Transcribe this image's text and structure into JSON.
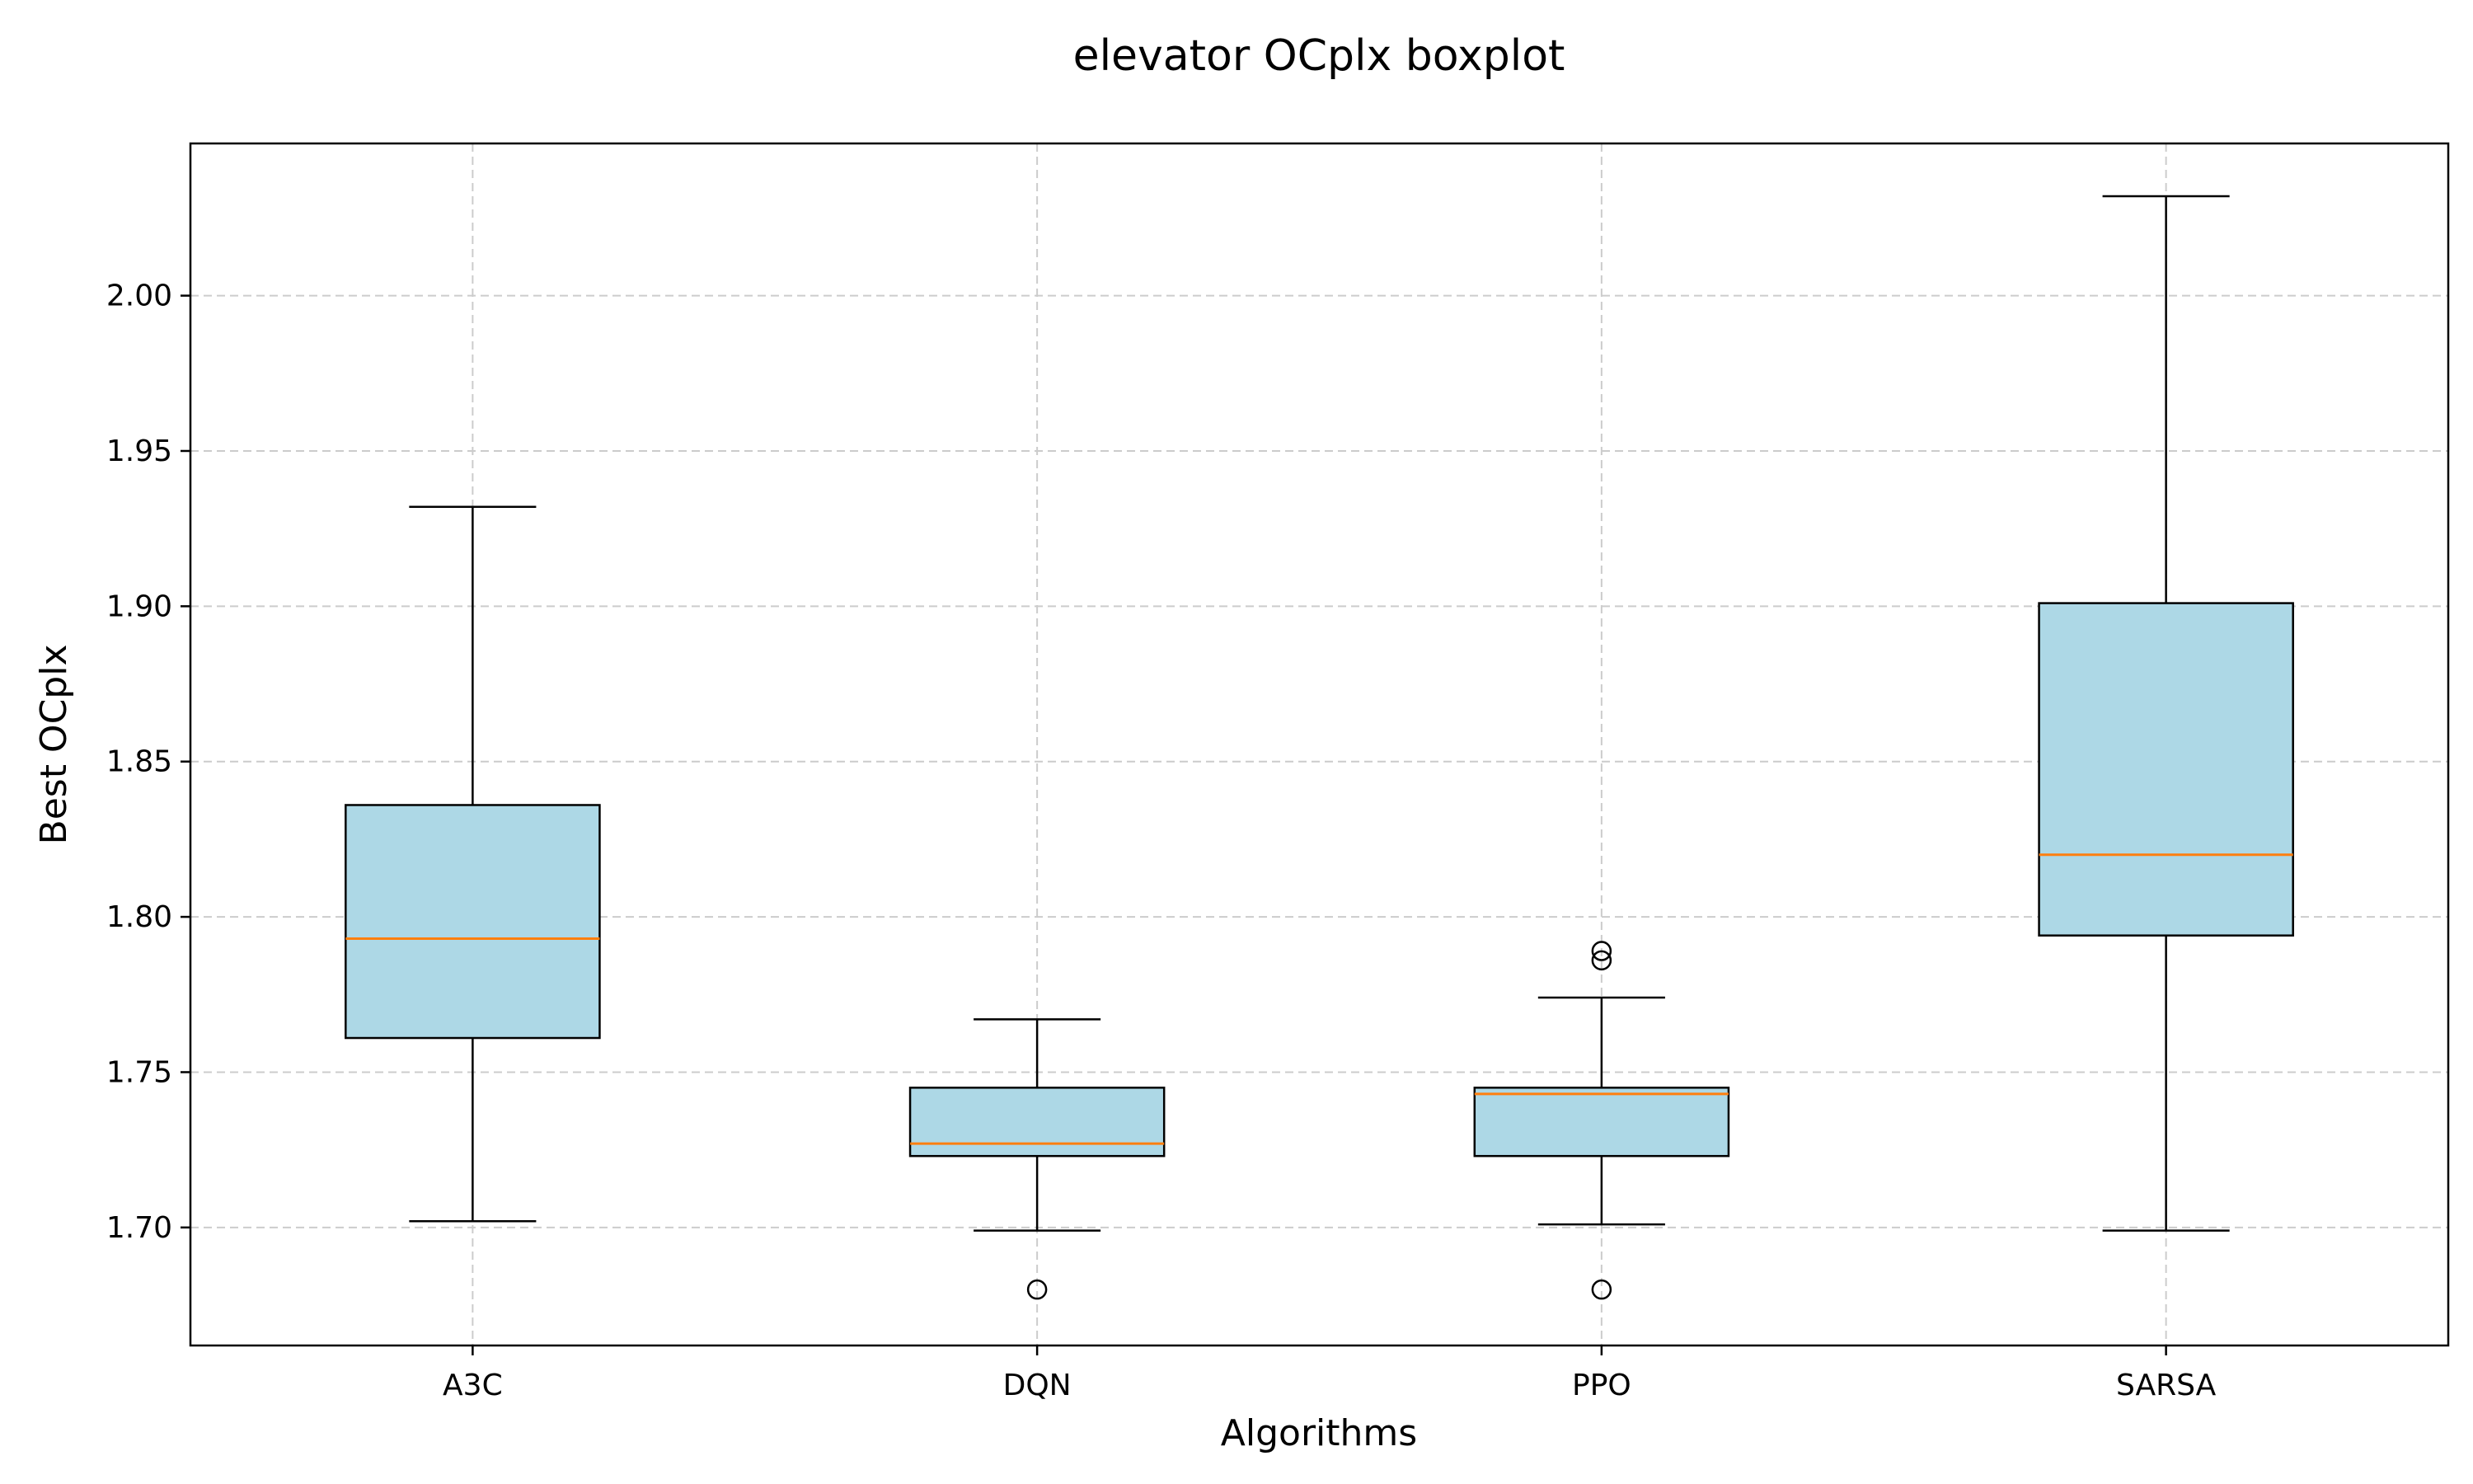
{
  "chart_data": {
    "type": "box",
    "title": "elevator OCplx boxplot",
    "xlabel": "Algorithms",
    "ylabel": "Best OCplx",
    "ylim": [
      1.662,
      2.049
    ],
    "yticks": [
      "1.70",
      "1.75",
      "1.80",
      "1.85",
      "1.90",
      "1.95",
      "2.00"
    ],
    "grid": true,
    "categories": [
      "A3C",
      "DQN",
      "PPO",
      "SARSA"
    ],
    "boxes": [
      {
        "name": "A3C",
        "whisker_low": 1.702,
        "q1": 1.761,
        "median": 1.793,
        "q3": 1.836,
        "whisker_high": 1.932,
        "outliers": []
      },
      {
        "name": "DQN",
        "whisker_low": 1.699,
        "q1": 1.723,
        "median": 1.727,
        "q3": 1.745,
        "whisker_high": 1.767,
        "outliers": [
          1.68
        ]
      },
      {
        "name": "PPO",
        "whisker_low": 1.701,
        "q1": 1.723,
        "median": 1.743,
        "q3": 1.745,
        "whisker_high": 1.774,
        "outliers": [
          1.68,
          1.786,
          1.789
        ]
      },
      {
        "name": "SARSA",
        "whisker_low": 1.699,
        "q1": 1.794,
        "median": 1.82,
        "q3": 1.901,
        "whisker_high": 2.032,
        "outliers": []
      }
    ],
    "colors": {
      "box_fill": "#add8e6",
      "median": "#ff7f0e",
      "line": "#000000",
      "grid": "#cccccc"
    }
  }
}
